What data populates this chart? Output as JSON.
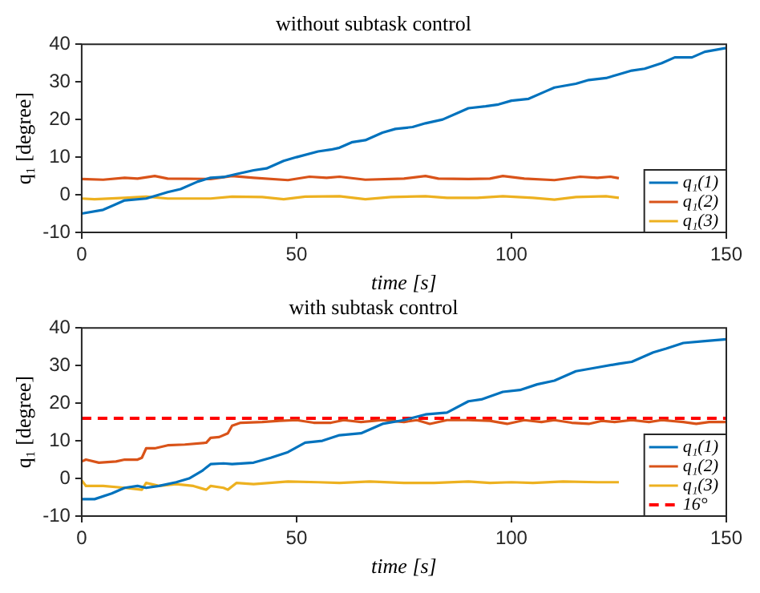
{
  "chart_data": [
    {
      "type": "line",
      "title": "without subtask control",
      "xlabel": "time [s]",
      "ylabel": "q₁ [degree]",
      "xlim": [
        0,
        150
      ],
      "xticks": [
        0,
        50,
        100,
        150
      ],
      "ylim": [
        -10,
        40
      ],
      "yticks": [
        -10,
        0,
        10,
        20,
        30,
        40
      ],
      "legend": "bottom right",
      "series": [
        {
          "name": "q₁(1)",
          "color": "#0072bd",
          "x": [
            0,
            5,
            10,
            15,
            18,
            20,
            23,
            27,
            30,
            33,
            36,
            40,
            43,
            47,
            50,
            55,
            58,
            60,
            63,
            66,
            70,
            73,
            77,
            80,
            84,
            88,
            90,
            94,
            97,
            100,
            104,
            108,
            110,
            115,
            118,
            122,
            125,
            128,
            131,
            135,
            138,
            142,
            145,
            150
          ],
          "values": [
            -5,
            -4,
            -1.5,
            -1,
            0,
            0.7,
            1.5,
            3.5,
            4.5,
            4.7,
            5.5,
            6.5,
            7,
            9,
            10,
            11.5,
            12,
            12.5,
            14,
            14.5,
            16.5,
            17.5,
            18,
            19,
            20,
            22,
            23,
            23.5,
            24,
            25,
            25.5,
            27.5,
            28.5,
            29.5,
            30.5,
            31,
            32,
            33,
            33.5,
            35,
            36.5,
            36.5,
            38,
            39
          ]
        },
        {
          "name": "q₁(2)",
          "color": "#d95319",
          "x": [
            0,
            5,
            10,
            13,
            17,
            20,
            30,
            35,
            40,
            48,
            53,
            57,
            60,
            66,
            75,
            80,
            83,
            90,
            95,
            98,
            103,
            110,
            116,
            120,
            123,
            125
          ],
          "values": [
            4.2,
            4,
            4.5,
            4.3,
            5,
            4.3,
            4.2,
            5,
            4.5,
            3.9,
            4.8,
            4.5,
            4.8,
            4,
            4.3,
            5,
            4.3,
            4.2,
            4.3,
            5,
            4.3,
            3.9,
            4.8,
            4.5,
            4.8,
            4.4
          ]
        },
        {
          "name": "q₁(3)",
          "color": "#edb120",
          "x": [
            0,
            3,
            10,
            15,
            20,
            30,
            35,
            42,
            47,
            52,
            60,
            66,
            72,
            80,
            85,
            92,
            98,
            105,
            110,
            115,
            122,
            125
          ],
          "values": [
            -1,
            -1.2,
            -0.8,
            -0.5,
            -1,
            -1,
            -0.5,
            -0.6,
            -1.2,
            -0.5,
            -0.4,
            -1.2,
            -0.6,
            -0.4,
            -0.8,
            -0.8,
            -0.4,
            -0.8,
            -1.3,
            -0.6,
            -0.4,
            -0.8
          ]
        }
      ]
    },
    {
      "type": "line",
      "title": "with subtask control",
      "xlabel": "time [s]",
      "ylabel": "q₁ [degree]",
      "xlim": [
        0,
        150
      ],
      "xticks": [
        0,
        50,
        100,
        150
      ],
      "ylim": [
        -10,
        40
      ],
      "yticks": [
        -10,
        0,
        10,
        20,
        30,
        40
      ],
      "legend": "bottom right",
      "ref_lines": [
        {
          "axis": "y",
          "value": 16,
          "label": "16°",
          "color": "#ff0000",
          "line_style": "dashed"
        }
      ],
      "series": [
        {
          "name": "q₁(1)",
          "color": "#0072bd",
          "x": [
            0,
            3,
            7,
            10,
            13,
            15,
            18,
            22,
            25,
            28,
            30,
            33,
            35,
            40,
            44,
            48,
            52,
            56,
            60,
            65,
            70,
            75,
            80,
            85,
            90,
            93,
            98,
            102,
            106,
            110,
            115,
            120,
            125,
            128,
            133,
            136,
            140,
            145,
            150
          ],
          "values": [
            -5.5,
            -5.5,
            -4,
            -2.5,
            -2,
            -2.5,
            -2,
            -1,
            0,
            2,
            3.8,
            4,
            3.8,
            4.2,
            5.5,
            7,
            9.5,
            10,
            11.5,
            12,
            14.5,
            15.5,
            17,
            17.5,
            20.5,
            21,
            23,
            23.5,
            25,
            26,
            28.5,
            29.5,
            30.5,
            31,
            33.5,
            34.5,
            36,
            36.5,
            37
          ]
        },
        {
          "name": "q₁(2)",
          "color": "#d95319",
          "x": [
            0,
            1,
            4,
            8,
            10,
            13,
            14,
            15,
            17,
            20,
            24,
            29,
            30,
            32,
            34,
            35,
            37,
            42,
            46,
            50,
            54,
            58,
            61,
            65,
            70,
            75,
            78,
            81,
            85,
            90,
            95,
            99,
            103,
            107,
            110,
            114,
            118,
            121,
            124,
            128,
            132,
            135,
            140,
            143,
            146,
            150
          ],
          "values": [
            4.5,
            5,
            4.2,
            4.5,
            5,
            5,
            5.5,
            8,
            8,
            8.8,
            9,
            9.5,
            10.8,
            11,
            12,
            14,
            14.8,
            15,
            15.3,
            15.5,
            14.8,
            14.8,
            15.5,
            15,
            15.5,
            15,
            15.5,
            14.5,
            15.5,
            15.5,
            15.3,
            14.5,
            15.5,
            15,
            15.5,
            14.8,
            14.5,
            15.3,
            15,
            15.5,
            15,
            15.5,
            15,
            14.5,
            15,
            15
          ]
        },
        {
          "name": "q₁(3)",
          "color": "#edb120",
          "x": [
            0,
            1,
            5,
            10,
            14,
            15,
            18,
            22,
            26,
            29,
            30,
            33,
            34,
            36,
            40,
            48,
            55,
            60,
            67,
            75,
            82,
            90,
            95,
            100,
            105,
            112,
            120,
            125
          ],
          "values": [
            -0.5,
            -2,
            -2,
            -2.5,
            -3,
            -1.2,
            -2,
            -1.5,
            -2,
            -3,
            -2,
            -2.5,
            -3,
            -1.2,
            -1.5,
            -0.8,
            -1,
            -1.2,
            -0.8,
            -1.2,
            -1.2,
            -0.8,
            -1.2,
            -1,
            -1.2,
            -0.8,
            -1,
            -1
          ]
        }
      ]
    }
  ]
}
